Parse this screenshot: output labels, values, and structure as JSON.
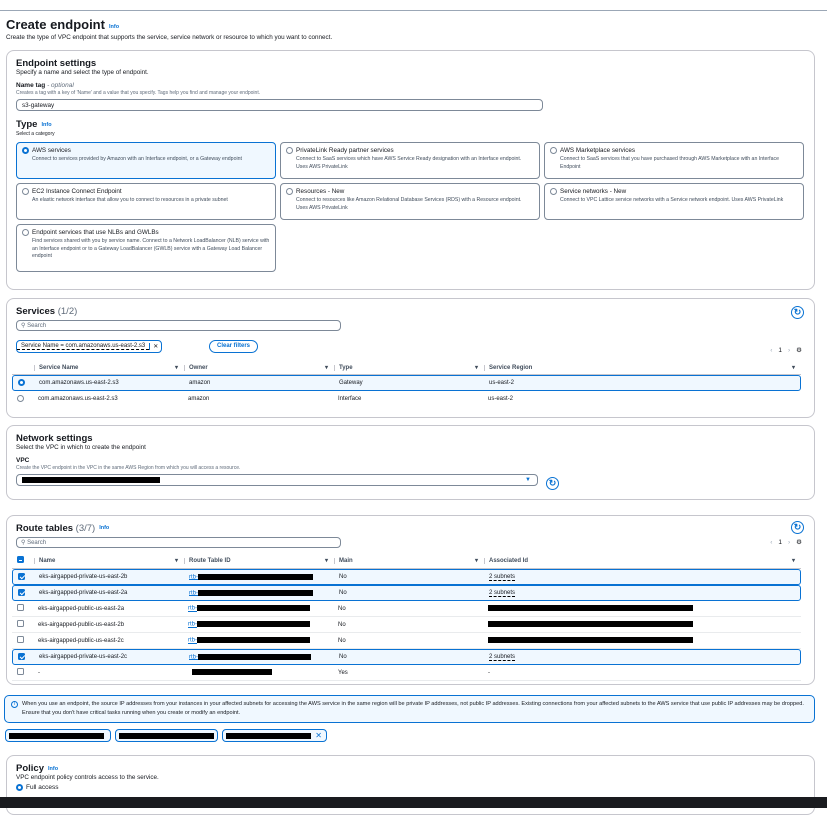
{
  "header": {
    "title": "Create endpoint",
    "info": "Info",
    "subtitle": "Create the type of VPC endpoint that supports the service, service network or resource to which you want to connect."
  },
  "endpoint_settings": {
    "title": "Endpoint settings",
    "subtitle": "Specify a name and select the type of endpoint.",
    "name_tag_label": "Name tag",
    "name_tag_optional": "- optional",
    "name_tag_desc": "Creates a tag with a key of 'Name' and a value that you specify. Tags help you find and manage your endpoint.",
    "name_tag_value": "s3-gateway",
    "type_label": "Type",
    "type_info": "Info",
    "type_desc": "Select a category",
    "types": [
      {
        "title": "AWS services",
        "desc": "Connect to services provided by Amazon with an Interface endpoint, or a Gateway endpoint",
        "selected": true
      },
      {
        "title": "PrivateLink Ready partner services",
        "desc": "Connect to SaaS services which have AWS Service Ready designation with an Interface endpoint. Uses AWS PrivateLink",
        "selected": false
      },
      {
        "title": "AWS Marketplace services",
        "desc": "Connect to SaaS services that you have purchased through AWS Marketplace with an Interface Endpoint",
        "selected": false
      },
      {
        "title": "EC2 Instance Connect Endpoint",
        "desc": "An elastic network interface that allow you to connect to resources in a private subnet",
        "selected": false
      },
      {
        "title": "Resources - New",
        "desc": "Connect to resources like Amazon Relational Database Services (RDS) with a Resource endpoint. Uses AWS PrivateLink",
        "selected": false
      },
      {
        "title": "Service networks - New",
        "desc": "Connect to VPC Lattice service networks with a Service network endpoint. Uses AWS PrivateLink",
        "selected": false
      },
      {
        "title": "Endpoint services that use NLBs and GWLBs",
        "desc": "Find services shared with you by service name. Connect to a Network LoadBalancer (NLB) service with an Interface endpoint or to a Gateway LoadBalancer (GWLB) service with a Gateway Load Balancer endpoint",
        "selected": false
      }
    ]
  },
  "services": {
    "title": "Services",
    "count": "(1/2)",
    "search_placeholder": "Search",
    "filter_token": "Service Name = com.amazonaws.us-east-2.s3",
    "clear_filters": "Clear filters",
    "page": "1",
    "columns": [
      "Service Name",
      "Owner",
      "Type",
      "Service Region"
    ],
    "rows": [
      {
        "cells": [
          "com.amazonaws.us-east-2.s3",
          "amazon",
          "Gateway",
          "us-east-2"
        ],
        "selected": true
      },
      {
        "cells": [
          "com.amazonaws.us-east-2.s3",
          "amazon",
          "Interface",
          "us-east-2"
        ],
        "selected": false
      }
    ]
  },
  "network": {
    "title": "Network settings",
    "subtitle": "Select the VPC in which to create the endpoint",
    "vpc_label": "VPC",
    "vpc_desc": "Create the VPC endpoint in the VPC in the same AWS Region from which you will access a resource."
  },
  "route_tables": {
    "title": "Route tables",
    "count": "(3/7)",
    "info": "Info",
    "search_placeholder": "Search",
    "page": "1",
    "columns": [
      "Name",
      "Route Table ID",
      "Main",
      "Associated Id"
    ],
    "rows": [
      {
        "name": "eks-airgapped-private-us-east-2b",
        "id_prefix": "rtb-",
        "main": "No",
        "assoc": "2 subnets",
        "selected": true
      },
      {
        "name": "eks-airgapped-private-us-east-2a",
        "id_prefix": "rtb-",
        "main": "No",
        "assoc": "2 subnets",
        "selected": true
      },
      {
        "name": "eks-airgapped-public-us-east-2a",
        "id_prefix": "rtb-",
        "main": "No",
        "assoc": "",
        "selected": false
      },
      {
        "name": "eks-airgapped-public-us-east-2b",
        "id_prefix": "rtb-",
        "main": "No",
        "assoc": "",
        "selected": false
      },
      {
        "name": "eks-airgapped-public-us-east-2c",
        "id_prefix": "rtb-",
        "main": "No",
        "assoc": "",
        "selected": false
      },
      {
        "name": "eks-airgapped-private-us-east-2c",
        "id_prefix": "rtb-",
        "main": "No",
        "assoc": "2 subnets",
        "selected": true
      },
      {
        "name": "-",
        "id_prefix": "",
        "main": "Yes",
        "assoc": "-",
        "selected": false
      }
    ]
  },
  "alert": {
    "text": "When you use an endpoint, the source IP addresses from your instances in your affected subnets for accessing the AWS service in the same region will be private IP addresses, not public IP addresses. Existing connections from your affected subnets to the AWS service that use public IP addresses may be dropped. Ensure that you don't have critical tasks running when you create or modify an endpoint."
  },
  "policy": {
    "title": "Policy",
    "info": "Info",
    "subtitle": "VPC endpoint policy controls access to the service.",
    "option": "Full access"
  },
  "colors": {
    "accent": "#0972d3",
    "selected_bg": "#f0f8ff"
  }
}
